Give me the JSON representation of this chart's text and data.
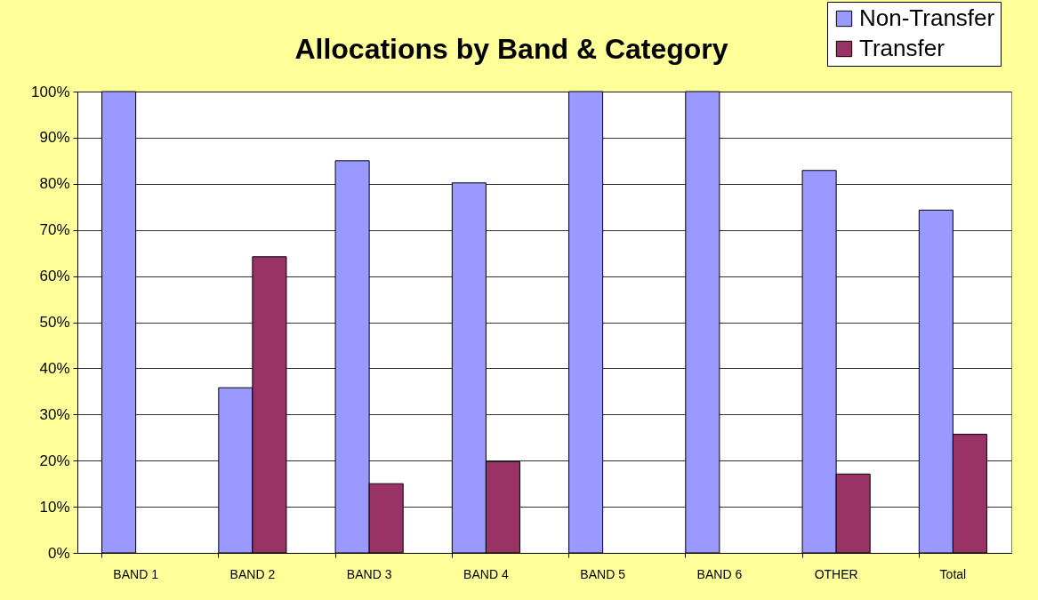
{
  "chart_data": {
    "type": "bar",
    "title": "Allocations by Band & Category",
    "categories": [
      "BAND 1",
      "BAND 2",
      "BAND 3",
      "BAND 4",
      "BAND 5",
      "BAND 6",
      "OTHER",
      "Total"
    ],
    "series": [
      {
        "name": "Non-Transfer",
        "color": "#9999ff",
        "values": [
          100,
          35.8,
          85,
          80.2,
          100,
          100,
          82.9,
          74.3
        ]
      },
      {
        "name": "Transfer",
        "color": "#993366",
        "values": [
          0,
          64.2,
          15,
          19.8,
          0,
          0,
          17.1,
          25.7
        ]
      }
    ],
    "ylim": [
      0,
      100
    ],
    "yticks": [
      {
        "value": 0,
        "label": "0%"
      },
      {
        "value": 10,
        "label": "10%"
      },
      {
        "value": 20,
        "label": "20%"
      },
      {
        "value": 30,
        "label": "30%"
      },
      {
        "value": 40,
        "label": "40%"
      },
      {
        "value": 50,
        "label": "50%"
      },
      {
        "value": 60,
        "label": "60%"
      },
      {
        "value": 70,
        "label": "70%"
      },
      {
        "value": 80,
        "label": "80%"
      },
      {
        "value": 90,
        "label": "90%"
      },
      {
        "value": 100,
        "label": "100%"
      }
    ],
    "grid": "y",
    "legend": "top right"
  }
}
